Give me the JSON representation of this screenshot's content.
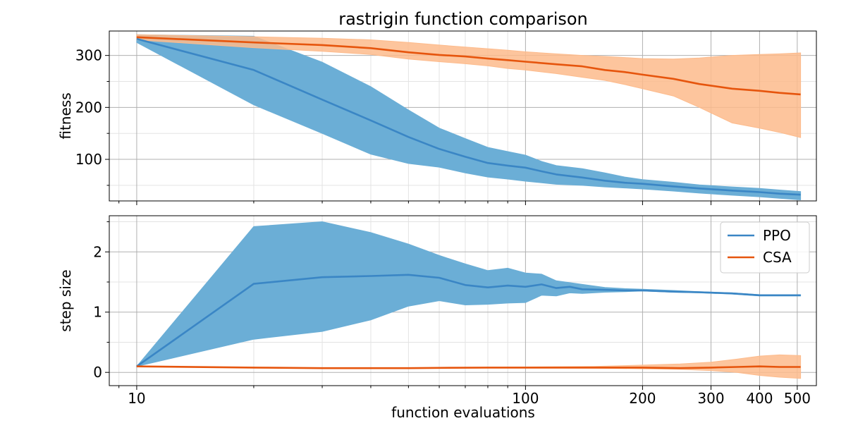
{
  "title": "rastrigin function comparison",
  "xlabel": "function evaluations",
  "colors": {
    "ppo_line": "#3a86c5",
    "ppo_band": "#6baed6",
    "csa_line": "#e6550d",
    "csa_band": "#fdbb8c",
    "grid_major": "#b0b0b0",
    "grid_minor": "#e3e3e3"
  },
  "chart_data": [
    {
      "type": "line",
      "ylabel": "fitness",
      "xscale": "log",
      "xlim": [
        8.5,
        560
      ],
      "ylim": [
        20,
        347
      ],
      "grid": "major and minor",
      "x_ticks": [
        10,
        100,
        200,
        300,
        400,
        500
      ],
      "y_ticks": [
        100,
        200,
        300
      ],
      "x_minor_ticks": [
        9,
        20,
        30,
        40,
        50,
        60,
        70,
        80,
        90
      ],
      "y_minor_ticks": [
        50,
        150,
        250
      ],
      "series": [
        {
          "name": "PPO",
          "x": [
            10,
            20,
            30,
            40,
            50,
            60,
            70,
            80,
            90,
            100,
            110,
            120,
            140,
            160,
            180,
            200,
            240,
            280,
            340,
            400,
            450,
            510
          ],
          "y": [
            332,
            272,
            215,
            175,
            143,
            120,
            105,
            93,
            88,
            84,
            77,
            71,
            65,
            59,
            55,
            53,
            48,
            44,
            40,
            37,
            34,
            32
          ],
          "lower": [
            325,
            205,
            150,
            110,
            92,
            85,
            74,
            66,
            62,
            58,
            55,
            52,
            50,
            47,
            45,
            43,
            39,
            35,
            31,
            28,
            25,
            22
          ],
          "upper": [
            340,
            337,
            287,
            240,
            195,
            160,
            140,
            123,
            115,
            108,
            96,
            88,
            82,
            74,
            66,
            61,
            56,
            51,
            47,
            44,
            41,
            38
          ]
        },
        {
          "name": "CSA",
          "x": [
            10,
            20,
            30,
            40,
            50,
            60,
            70,
            80,
            90,
            100,
            120,
            140,
            160,
            180,
            200,
            240,
            280,
            340,
            400,
            450,
            510
          ],
          "y": [
            335,
            325,
            320,
            314,
            306,
            301,
            298,
            294,
            291,
            288,
            283,
            279,
            272,
            268,
            263,
            255,
            245,
            236,
            232,
            228,
            225
          ],
          "lower": [
            330,
            315,
            308,
            302,
            293,
            288,
            284,
            280,
            275,
            272,
            265,
            258,
            252,
            244,
            236,
            222,
            200,
            170,
            160,
            152,
            142
          ],
          "upper": [
            340,
            336,
            333,
            330,
            325,
            320,
            316,
            313,
            310,
            307,
            303,
            300,
            298,
            296,
            294,
            293,
            295,
            300,
            302,
            303,
            305
          ]
        }
      ]
    },
    {
      "type": "line",
      "ylabel": "step size",
      "xscale": "log",
      "xlim": [
        8.5,
        560
      ],
      "ylim": [
        -0.22,
        2.6
      ],
      "grid": "major and minor",
      "x_ticks": [
        10,
        100,
        200,
        300,
        400,
        500
      ],
      "y_ticks": [
        0,
        1,
        2
      ],
      "x_minor_ticks": [
        9,
        20,
        30,
        40,
        50,
        60,
        70,
        80,
        90
      ],
      "y_minor_ticks": [
        0.5,
        1.5,
        2.5
      ],
      "legend": "top-right",
      "series": [
        {
          "name": "PPO",
          "x": [
            10,
            20,
            30,
            40,
            50,
            60,
            70,
            80,
            90,
            100,
            110,
            120,
            130,
            140,
            160,
            180,
            200,
            240,
            280,
            340,
            400,
            450,
            510
          ],
          "y": [
            0.1,
            1.47,
            1.58,
            1.6,
            1.62,
            1.57,
            1.45,
            1.41,
            1.44,
            1.42,
            1.46,
            1.4,
            1.42,
            1.38,
            1.37,
            1.36,
            1.36,
            1.34,
            1.33,
            1.31,
            1.28,
            1.28,
            1.28
          ],
          "lower": [
            0.1,
            0.55,
            0.68,
            0.87,
            1.1,
            1.19,
            1.12,
            1.13,
            1.15,
            1.16,
            1.28,
            1.27,
            1.32,
            1.31,
            1.33,
            1.34,
            1.35,
            1.33,
            1.32,
            1.3,
            1.27,
            1.27,
            1.27
          ],
          "upper": [
            0.1,
            2.42,
            2.5,
            2.32,
            2.13,
            1.94,
            1.8,
            1.69,
            1.73,
            1.65,
            1.63,
            1.52,
            1.49,
            1.46,
            1.41,
            1.39,
            1.38,
            1.36,
            1.34,
            1.32,
            1.29,
            1.29,
            1.29
          ]
        },
        {
          "name": "CSA",
          "x": [
            10,
            20,
            30,
            40,
            50,
            60,
            80,
            100,
            150,
            200,
            250,
            300,
            350,
            400,
            450,
            510
          ],
          "y": [
            0.1,
            0.08,
            0.07,
            0.07,
            0.07,
            0.075,
            0.08,
            0.08,
            0.08,
            0.08,
            0.07,
            0.08,
            0.09,
            0.1,
            0.09,
            0.09
          ],
          "lower": [
            0.1,
            0.075,
            0.065,
            0.065,
            0.065,
            0.07,
            0.075,
            0.075,
            0.07,
            0.06,
            0.05,
            0.03,
            0.0,
            -0.05,
            -0.08,
            -0.1
          ],
          "upper": [
            0.1,
            0.085,
            0.075,
            0.075,
            0.075,
            0.08,
            0.085,
            0.09,
            0.1,
            0.12,
            0.14,
            0.17,
            0.22,
            0.27,
            0.29,
            0.28
          ]
        }
      ]
    }
  ]
}
